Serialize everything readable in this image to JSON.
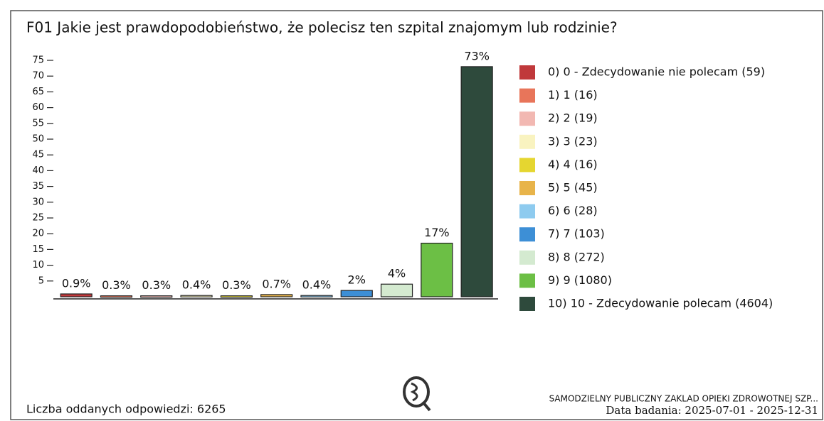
{
  "chart_data": {
    "type": "bar",
    "title": "F01 Jakie jest prawdopodobieństwo, że polecisz ten szpital znajomym lub rodzinie?",
    "categories": [
      "0) 0 - Zdecydowanie nie polecam (59)",
      "1) 1 (16)",
      "2) 2 (19)",
      "3) 3 (23)",
      "4) 4 (16)",
      "5) 5 (45)",
      "6) 6 (28)",
      "7) 7 (103)",
      "8) 8 (272)",
      "9) 9 (1080)",
      "10) 10 - Zdecydowanie polecam (4604)"
    ],
    "values": [
      0.9,
      0.3,
      0.3,
      0.4,
      0.3,
      0.7,
      0.4,
      2,
      4,
      17,
      73
    ],
    "value_labels": [
      "0.9%",
      "0.3%",
      "0.3%",
      "0.4%",
      "0.3%",
      "0.7%",
      "0.4%",
      "2%",
      "4%",
      "17%",
      "73%"
    ],
    "colors": [
      "#c0393b",
      "#e8755a",
      "#f2b8b2",
      "#f9f3c0",
      "#e5d630",
      "#e8b44a",
      "#8ecbef",
      "#3d8fd6",
      "#d4ead0",
      "#6cbf45",
      "#2e4a3c"
    ],
    "ylim": [
      0,
      75
    ],
    "yticks": [
      5,
      10,
      15,
      20,
      25,
      30,
      35,
      40,
      45,
      50,
      55,
      60,
      65,
      70,
      75
    ],
    "legend": "right"
  },
  "footer": {
    "responses": "Liczba oddanych odpowiedzi: 6265",
    "institution": "SAMODZIELNY PUBLICZNY ZAKLAD OPIEKI ZDROWOTNEJ SZP...",
    "date": "Data badania: 2025-07-01 - 2025-12-31"
  }
}
